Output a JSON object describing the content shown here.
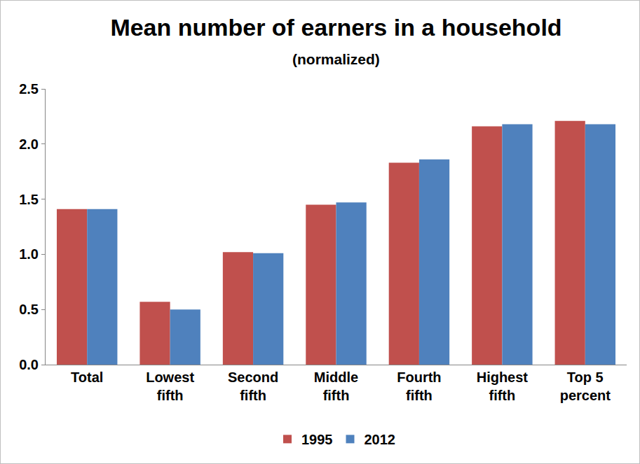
{
  "chart_data": {
    "type": "bar",
    "title": "Mean number of earners in a household",
    "subtitle": "(normalized)",
    "categories": [
      "Total",
      "Lowest fifth",
      "Second fifth",
      "Middle fifth",
      "Fourth fifth",
      "Highest fifth",
      "Top 5 percent"
    ],
    "series": [
      {
        "name": "1995",
        "color": "#c0504d",
        "values": [
          1.41,
          0.57,
          1.02,
          1.45,
          1.83,
          2.16,
          2.21
        ]
      },
      {
        "name": "2012",
        "color": "#4f81bd",
        "values": [
          1.41,
          0.5,
          1.01,
          1.47,
          1.86,
          2.18,
          2.18
        ]
      }
    ],
    "ylim": [
      0,
      2.5
    ],
    "yticks": [
      {
        "value": 0,
        "label": "0.0"
      },
      0.5,
      {
        "value": 1,
        "label": "1.0"
      },
      1.5,
      {
        "value": 2,
        "label": "2.0"
      },
      2.5
    ],
    "grid": false,
    "legend": "bottom"
  }
}
